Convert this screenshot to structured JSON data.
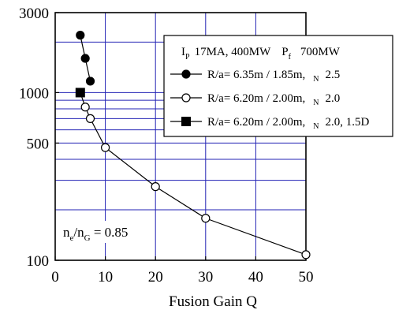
{
  "chart_data": {
    "type": "line",
    "xlabel": "Fusion Gain  Q",
    "ylabel": "",
    "xlim": [
      0,
      50
    ],
    "ylim": [
      100,
      3000
    ],
    "yscale": "log",
    "grid": true,
    "x_ticks": [
      "0",
      "10",
      "20",
      "30",
      "40",
      "50"
    ],
    "y_ticks": [
      "100",
      "500",
      "1000",
      "3000"
    ],
    "legend_position": "top-right",
    "legend_header": {
      "ip_symbol": "I",
      "ip_subscript": "P",
      "ip_text": "17MA,  400MW",
      "pf_symbol": "P",
      "pf_subscript": "f",
      "pf_text": "700MW"
    },
    "series": [
      {
        "name": "R/a= 6.35m / 1.85m,",
        "param_subscript": "N",
        "param_value": "2.5",
        "marker": "filled-circle",
        "connected": true,
        "points": [
          [
            5,
            2200
          ],
          [
            6,
            1600
          ],
          [
            7,
            1170
          ]
        ]
      },
      {
        "name": "R/a= 6.20m / 2.00m,",
        "param_subscript": "N",
        "param_value": "2.0",
        "marker": "open-circle",
        "connected": true,
        "points": [
          [
            5,
            1000
          ],
          [
            6,
            820
          ],
          [
            7,
            700
          ],
          [
            10,
            470
          ],
          [
            20,
            275
          ],
          [
            30,
            178
          ],
          [
            50,
            108
          ]
        ]
      },
      {
        "name": "R/a= 6.20m / 2.00m,",
        "param_subscript": "N",
        "param_value": "2.0, 1.5D",
        "marker": "filled-square",
        "connected": false,
        "points": [
          [
            5,
            1000
          ]
        ]
      }
    ],
    "annotation": {
      "ne": "n",
      "ne_sub": "e",
      "slash": "/n",
      "ng_sub": "G",
      "value": " = 0.85"
    }
  }
}
